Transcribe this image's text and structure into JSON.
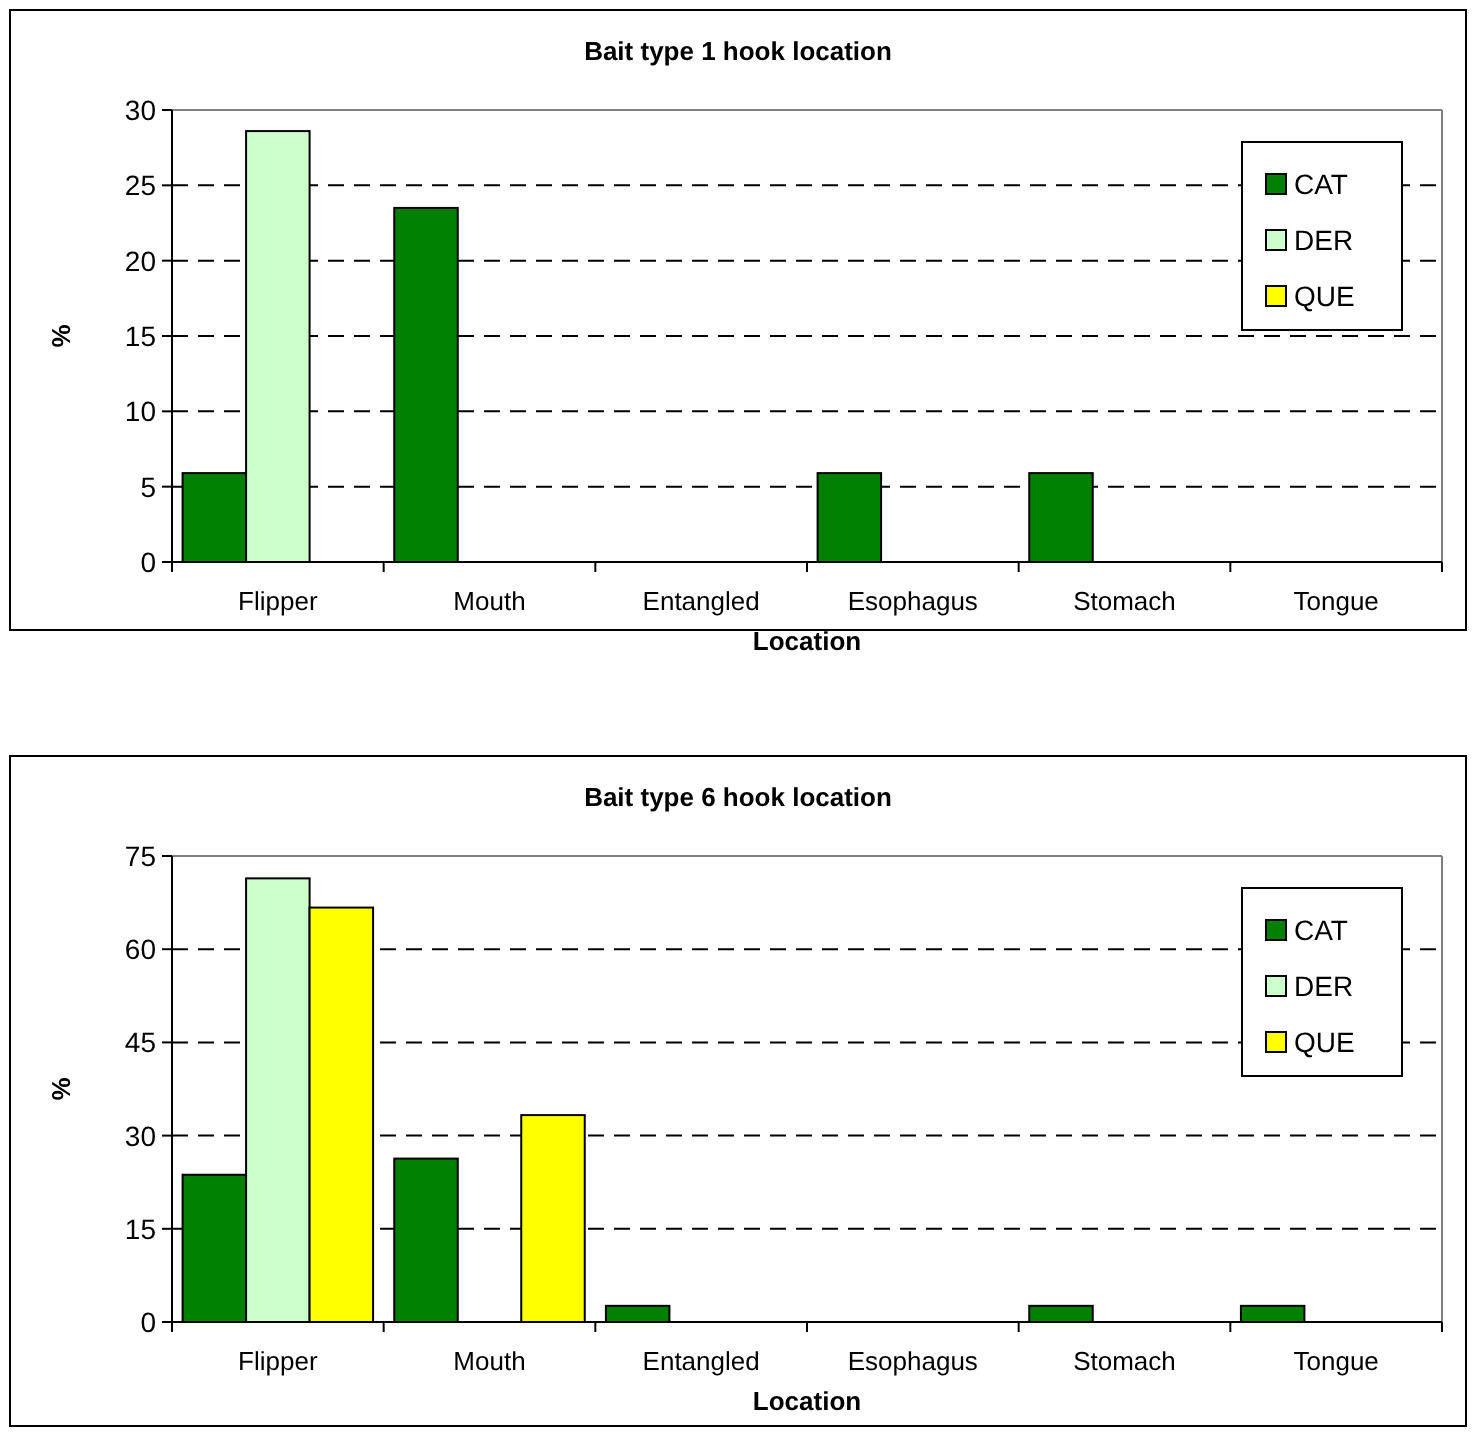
{
  "chart_data": [
    {
      "type": "bar",
      "title": "Bait  type 1 hook location",
      "xlabel": "Location",
      "ylabel": "%",
      "categories": [
        "Flipper",
        "Mouth",
        "Entangled",
        "Esophagus",
        "Stomach",
        "Tongue"
      ],
      "series": [
        {
          "name": "CAT",
          "color": "#008000",
          "values": [
            5.9,
            23.5,
            0,
            5.9,
            5.9,
            0
          ]
        },
        {
          "name": "DER",
          "color": "#ccffcc",
          "values": [
            28.6,
            0,
            0,
            0,
            0,
            0
          ]
        },
        {
          "name": "QUE",
          "color": "#ffff00",
          "values": [
            0,
            0,
            0,
            0,
            0,
            0
          ]
        }
      ],
      "ylim": [
        0,
        30
      ],
      "yticks": [
        0,
        5,
        10,
        15,
        20,
        25,
        30
      ],
      "grid": "y",
      "legend": "top right"
    },
    {
      "type": "bar",
      "title": "Bait  type 6 hook location",
      "xlabel": "Location",
      "ylabel": "%",
      "categories": [
        "Flipper",
        "Mouth",
        "Entangled",
        "Esophagus",
        "Stomach",
        "Tongue"
      ],
      "series": [
        {
          "name": "CAT",
          "color": "#008000",
          "values": [
            23.7,
            26.3,
            2.6,
            0,
            2.6,
            2.6
          ]
        },
        {
          "name": "DER",
          "color": "#ccffcc",
          "values": [
            71.4,
            0,
            0,
            0,
            0,
            0
          ]
        },
        {
          "name": "QUE",
          "color": "#ffff00",
          "values": [
            66.7,
            33.3,
            0,
            0,
            0,
            0
          ]
        }
      ],
      "ylim": [
        0,
        75
      ],
      "yticks": [
        0,
        15,
        30,
        45,
        60,
        75
      ],
      "grid": "y",
      "legend": "top right"
    }
  ]
}
